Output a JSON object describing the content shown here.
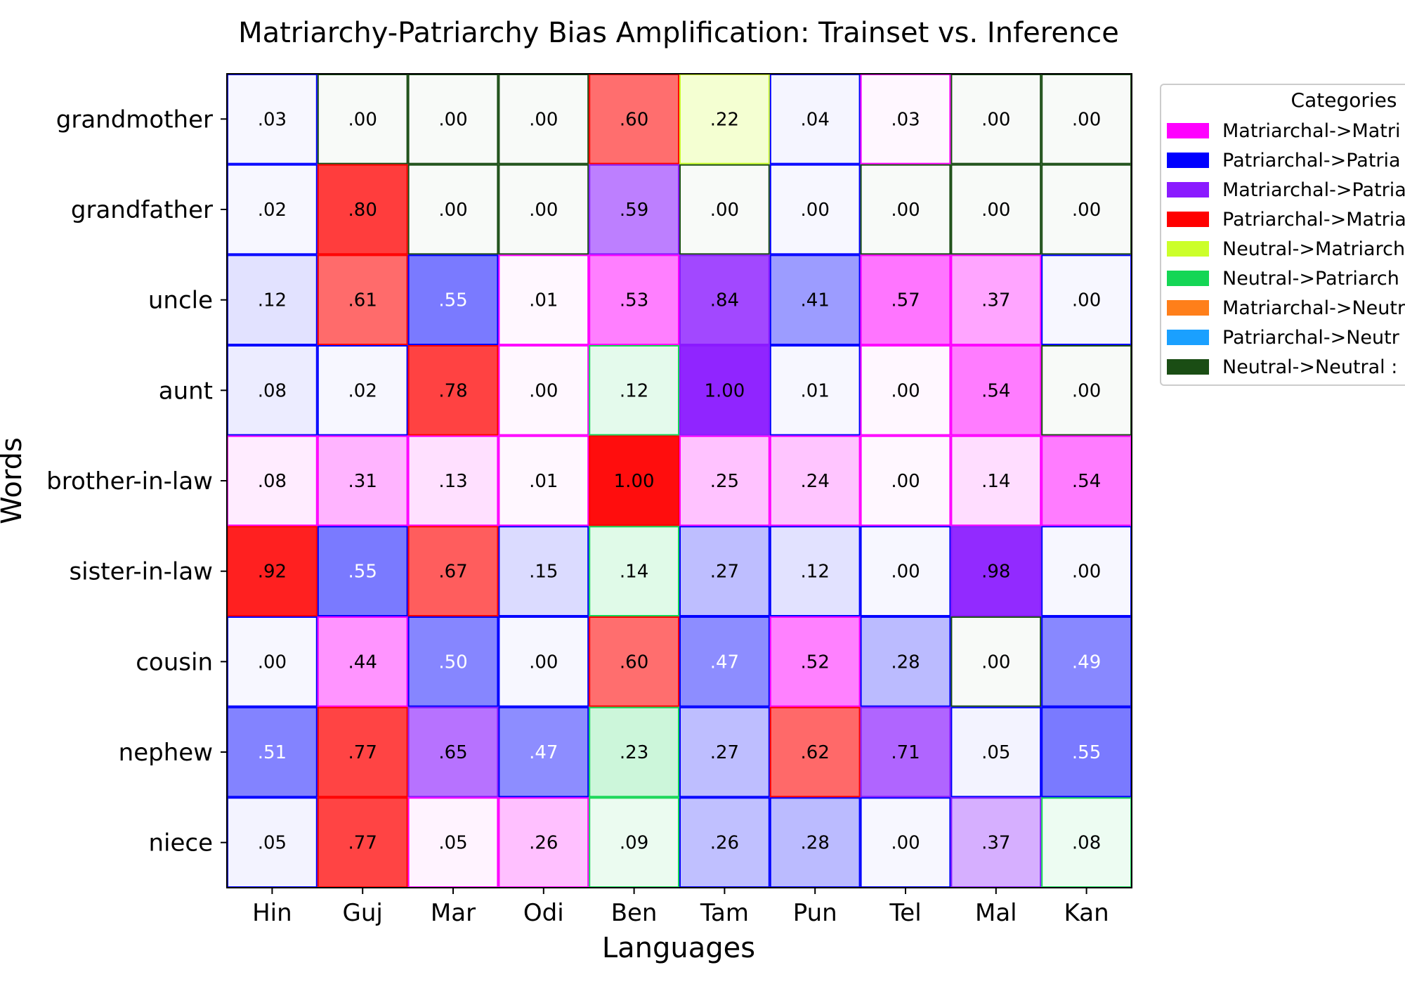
{
  "chart_data": {
    "type": "heatmap",
    "title": "Matriarchy-Patriarchy Bias Amplification: Trainset vs. Inference",
    "xlabel": "Languages",
    "ylabel": "Words",
    "x_categories": [
      "Hin",
      "Guj",
      "Mar",
      "Odi",
      "Ben",
      "Tam",
      "Pun",
      "Tel",
      "Mal",
      "Kan"
    ],
    "y_categories": [
      "grandmother",
      "grandfather",
      "uncle",
      "aunt",
      "brother-in-law",
      "sister-in-law",
      "cousin",
      "nephew",
      "niece"
    ],
    "values": [
      [
        0.03,
        0.0,
        0.0,
        0.0,
        0.6,
        0.22,
        0.04,
        0.03,
        0.0,
        0.0
      ],
      [
        0.02,
        0.8,
        0.0,
        0.0,
        0.59,
        0.0,
        0.0,
        0.0,
        0.0,
        0.0
      ],
      [
        0.12,
        0.61,
        0.55,
        0.01,
        0.53,
        0.84,
        0.41,
        0.57,
        0.37,
        0.0
      ],
      [
        0.08,
        0.02,
        0.78,
        0.0,
        0.12,
        1.0,
        0.01,
        0.0,
        0.54,
        0.0
      ],
      [
        0.08,
        0.31,
        0.13,
        0.01,
        1.0,
        0.25,
        0.24,
        0.0,
        0.14,
        0.54
      ],
      [
        0.92,
        0.55,
        0.67,
        0.15,
        0.14,
        0.27,
        0.12,
        0.0,
        0.98,
        0.0
      ],
      [
        0.0,
        0.44,
        0.5,
        0.0,
        0.6,
        0.47,
        0.52,
        0.28,
        0.0,
        0.49
      ],
      [
        0.51,
        0.77,
        0.65,
        0.47,
        0.23,
        0.27,
        0.62,
        0.71,
        0.05,
        0.55
      ],
      [
        0.05,
        0.77,
        0.05,
        0.26,
        0.09,
        0.26,
        0.28,
        0.0,
        0.37,
        0.08
      ]
    ],
    "value_labels": [
      [
        ".03",
        ".00",
        ".00",
        ".00",
        ".60",
        ".22",
        ".04",
        ".03",
        ".00",
        ".00"
      ],
      [
        ".02",
        ".80",
        ".00",
        ".00",
        ".59",
        ".00",
        ".00",
        ".00",
        ".00",
        ".00"
      ],
      [
        ".12",
        ".61",
        ".55",
        ".01",
        ".53",
        ".84",
        ".41",
        ".57",
        ".37",
        ".00"
      ],
      [
        ".08",
        ".02",
        ".78",
        ".00",
        ".12",
        "1.00",
        ".01",
        ".00",
        ".54",
        ".00"
      ],
      [
        ".08",
        ".31",
        ".13",
        ".01",
        "1.00",
        ".25",
        ".24",
        ".00",
        ".14",
        ".54"
      ],
      [
        ".92",
        ".55",
        ".67",
        ".15",
        ".14",
        ".27",
        ".12",
        ".00",
        ".98",
        ".00"
      ],
      [
        ".00",
        ".44",
        ".50",
        ".00",
        ".60",
        ".47",
        ".52",
        ".28",
        ".00",
        ".49"
      ],
      [
        ".51",
        ".77",
        ".65",
        ".47",
        ".23",
        ".27",
        ".62",
        ".71",
        ".05",
        ".55"
      ],
      [
        ".05",
        ".77",
        ".05",
        ".26",
        ".09",
        ".26",
        ".28",
        ".00",
        ".37",
        ".08"
      ]
    ],
    "category_index": [
      [
        1,
        8,
        8,
        8,
        3,
        4,
        1,
        0,
        8,
        8
      ],
      [
        1,
        3,
        8,
        8,
        2,
        8,
        1,
        8,
        8,
        8
      ],
      [
        1,
        3,
        1,
        0,
        0,
        2,
        1,
        0,
        0,
        1
      ],
      [
        1,
        1,
        3,
        0,
        5,
        2,
        1,
        0,
        0,
        8
      ],
      [
        0,
        0,
        0,
        0,
        3,
        0,
        0,
        0,
        0,
        0
      ],
      [
        3,
        1,
        3,
        1,
        5,
        1,
        1,
        1,
        2,
        1
      ],
      [
        1,
        0,
        1,
        1,
        3,
        1,
        0,
        1,
        8,
        1
      ],
      [
        1,
        3,
        2,
        1,
        5,
        1,
        3,
        2,
        1,
        1
      ],
      [
        1,
        3,
        0,
        0,
        5,
        1,
        1,
        1,
        2,
        5
      ]
    ],
    "legend": {
      "title": "Categories",
      "placement": "outside right, top",
      "entries": [
        {
          "label": "Matriarchal->Matri",
          "color": "#ff00ff"
        },
        {
          "label": "Patriarchal->Patria",
          "color": "#0000ff"
        },
        {
          "label": "Matriarchal->Patria",
          "color": "#8a1aff"
        },
        {
          "label": "Patriarchal->Matria",
          "color": "#ff0000"
        },
        {
          "label": "Neutral->Matriarch",
          "color": "#ccff2a"
        },
        {
          "label": "Neutral->Patriarch",
          "color": "#14d655"
        },
        {
          "label": "Matriarchal->Neutr",
          "color": "#ff7f1a"
        },
        {
          "label": "Patriarchal->Neutr",
          "color": "#1aa0ff"
        },
        {
          "label": "Neutral->Neutral :",
          "color": "#1a4d14"
        }
      ]
    },
    "grid": false,
    "value_range": [
      0,
      1
    ]
  }
}
